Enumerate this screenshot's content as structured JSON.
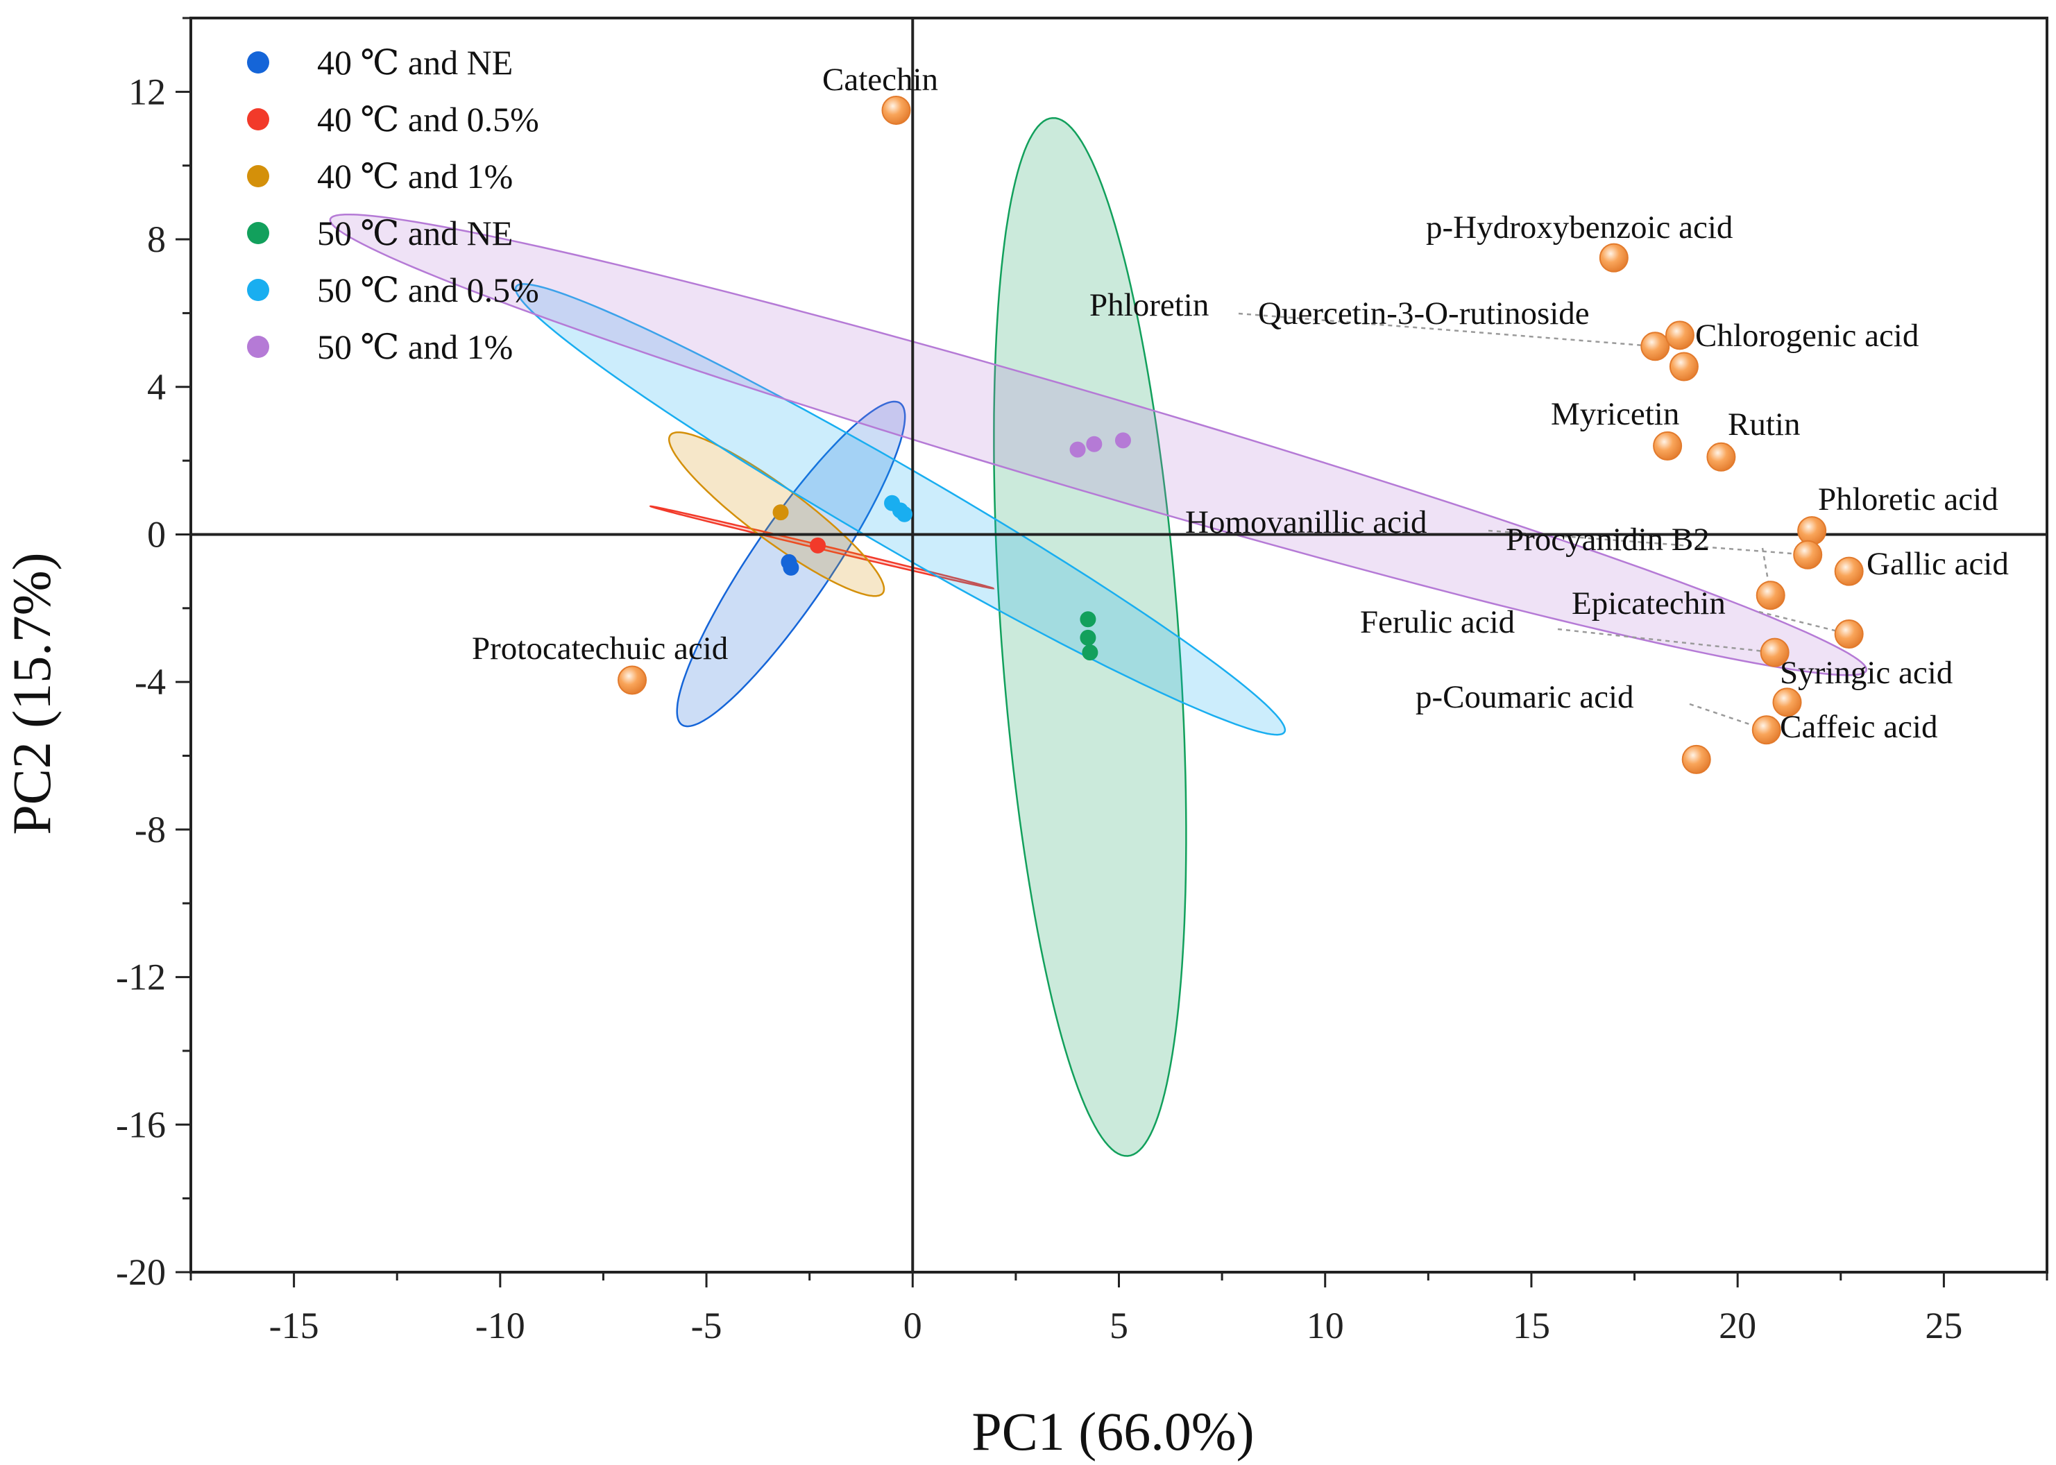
{
  "chart_data": {
    "type": "scatter",
    "title": "",
    "xlabel": "PC1 (66.0%)",
    "ylabel": "PC2 (15.7%)",
    "xlim": [
      -17.5,
      27.5
    ],
    "ylim": [
      -20,
      14
    ],
    "x_ticks": [
      -15,
      -10,
      -5,
      0,
      5,
      10,
      15,
      20,
      25
    ],
    "y_ticks": [
      -20,
      -16,
      -12,
      -8,
      -4,
      0,
      4,
      8,
      12
    ],
    "legend_position": "top-left",
    "grid": false,
    "reference_lines": {
      "x": 0,
      "y": 0
    },
    "series": [
      {
        "name": "40 ℃ and NE",
        "color": "#1565d8",
        "points": [
          [
            -3.0,
            -0.75
          ],
          [
            -2.95,
            -0.9
          ]
        ],
        "ellipse": {
          "center": [
            -2.95,
            -0.8
          ],
          "semi_major": 5.1,
          "semi_minor": 1.0,
          "angle_deg": -121
        }
      },
      {
        "name": "40 ℃ and 0.5%",
        "color": "#f23a2a",
        "points": [
          [
            -2.3,
            -0.3
          ]
        ],
        "ellipse": {
          "center": [
            -2.2,
            -0.35
          ],
          "semi_major": 4.3,
          "semi_minor": 0.05,
          "angle_deg": -15
        }
      },
      {
        "name": "40 ℃ and 1%",
        "color": "#d4900a",
        "points": [
          [
            -3.2,
            0.6
          ]
        ],
        "ellipse": {
          "center": [
            -3.3,
            0.55
          ],
          "semi_major": 3.35,
          "semi_minor": 0.7,
          "angle_deg": -40
        }
      },
      {
        "name": "50 ℃ and NE",
        "color": "#12a05c",
        "points": [
          [
            4.25,
            -2.3
          ],
          [
            4.25,
            -2.8
          ],
          [
            4.3,
            -3.2
          ]
        ],
        "ellipse": {
          "center": [
            4.3,
            -2.78
          ],
          "semi_major": 14.1,
          "semi_minor": 2.15,
          "angle_deg": -86.3
        }
      },
      {
        "name": "50 ℃ and 0.5%",
        "color": "#19aef0",
        "points": [
          [
            -0.5,
            0.85
          ],
          [
            -0.3,
            0.65
          ],
          [
            -0.2,
            0.55
          ]
        ],
        "ellipse": {
          "center": [
            -0.3,
            0.68
          ],
          "semi_major": 11.1,
          "semi_minor": 1.05,
          "angle_deg": -33
        }
      },
      {
        "name": "50 ℃ and 1%",
        "color": "#b57ad6",
        "points": [
          [
            4.0,
            2.3
          ],
          [
            4.4,
            2.45
          ],
          [
            5.1,
            2.55
          ]
        ],
        "ellipse": {
          "center": [
            4.5,
            2.43
          ],
          "semi_major": 19.6,
          "semi_minor": 1.3,
          "angle_deg": -18.2
        }
      }
    ],
    "loadings": {
      "color": "#f9a55a",
      "points": [
        {
          "label": "Catechin",
          "x": -0.4,
          "y": 11.5
        },
        {
          "label": "p-Hydroxybenzoic acid",
          "x": 17.0,
          "y": 7.5
        },
        {
          "label": "Phloretin",
          "x": 18.0,
          "y": 5.1
        },
        {
          "label": "Quercetin-3-O-rutinoside",
          "x": 18.6,
          "y": 5.4
        },
        {
          "label": "Chlorogenic acid",
          "x": 18.7,
          "y": 4.55
        },
        {
          "label": "Myricetin",
          "x": 18.3,
          "y": 2.4
        },
        {
          "label": "Rutin",
          "x": 19.6,
          "y": 2.1
        },
        {
          "label": "Phloretic acid",
          "x": 21.8,
          "y": 0.1
        },
        {
          "label": "Homovanillic acid",
          "x": 21.7,
          "y": -0.55
        },
        {
          "label": "Procyanidin B2",
          "x": 20.8,
          "y": -1.65
        },
        {
          "label": "Gallic acid",
          "x": 22.7,
          "y": -1.0
        },
        {
          "label": "Epicatechin",
          "x": 22.7,
          "y": -2.7
        },
        {
          "label": "Ferulic acid",
          "x": 20.9,
          "y": -3.2
        },
        {
          "label": "Syringic acid",
          "x": 21.2,
          "y": -4.55
        },
        {
          "label": "p-Coumaric acid",
          "x": 20.7,
          "y": -5.3
        },
        {
          "label": "Caffeic acid",
          "x": 19.0,
          "y": -6.1
        },
        {
          "label": "Protocatechuic acid",
          "x": -6.8,
          "y": -3.95
        }
      ]
    }
  }
}
